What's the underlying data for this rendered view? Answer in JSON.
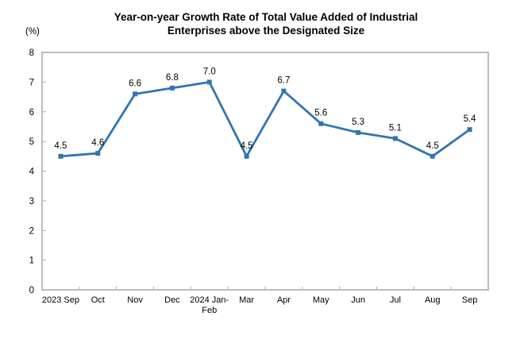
{
  "chart_data": {
    "type": "line",
    "title": "Year-on-year Growth Rate of Total Value Added of Industrial Enterprises above the Designated Size",
    "ylabel": "(%)",
    "xlabel": "",
    "categories": [
      "2023 Sep",
      "Oct",
      "Nov",
      "Dec",
      "2024 Jan-\nFeb",
      "Mar",
      "Apr",
      "May",
      "Jun",
      "Jul",
      "Aug",
      "Sep"
    ],
    "values": [
      4.5,
      4.6,
      6.6,
      6.8,
      7.0,
      4.5,
      6.7,
      5.6,
      5.3,
      5.1,
      4.5,
      5.4
    ],
    "ylim": [
      0,
      8
    ],
    "ytick_step": 1,
    "grid": false,
    "legend": "none",
    "data_labels": true,
    "marker": "square",
    "line_color": "#2F75B5",
    "axis_color": "#A6A6A6",
    "label_color": "#000000"
  }
}
